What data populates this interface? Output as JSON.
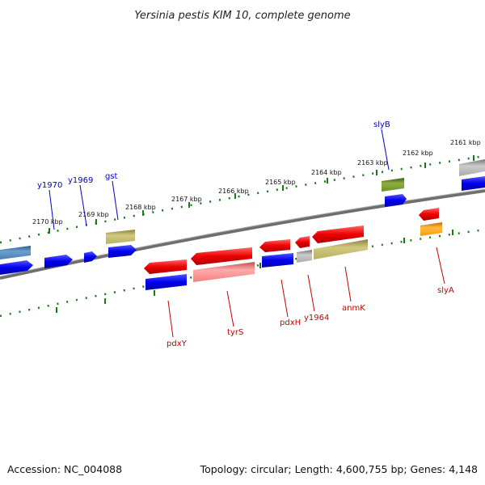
{
  "title": "Yersinia pestis KIM 10, complete genome",
  "accession": "Accession: NC_004088",
  "summary": "Topology: circular; Length: 4,600,755 bp; Genes: 4,148",
  "ruler_labels": [
    "2161 kbp",
    "2162 kbp",
    "2163 kbp",
    "2164 kbp",
    "2165 kbp",
    "2166 kbp",
    "2167 kbp",
    "2168 kbp",
    "2169 kbp",
    "2170 kbp"
  ],
  "genes_outer": [
    "slyB",
    "gst",
    "y1969",
    "y1970"
  ],
  "genes_inner": [
    "pdxY",
    "tyrS",
    "pdxH",
    "y1964",
    "anmK",
    "slyA"
  ],
  "colors": {
    "outer_label": "#0000cc",
    "inner_label": "#cc0000",
    "ruler": "#1a7a1a",
    "backbone": "#707070",
    "cds_blue": "#0000ee",
    "cds_red": "#ee0000",
    "olive": "#b8b060",
    "gray": "#b0b0b0",
    "orange": "#ff9900",
    "green": "#6b8e23",
    "steel": "#4a7fb0",
    "pink": "#f08080"
  }
}
